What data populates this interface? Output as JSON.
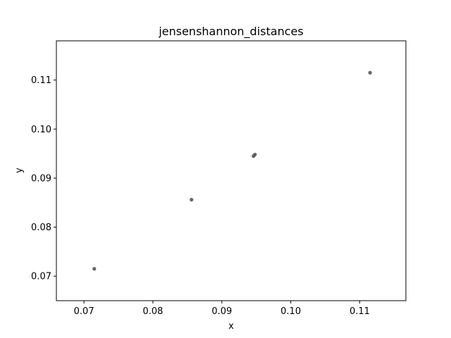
{
  "chart_data": {
    "type": "scatter",
    "title": "jensenshannon_distances",
    "xlabel": "x",
    "ylabel": "y",
    "xlim": [
      0.066,
      0.1167
    ],
    "ylim": [
      0.065,
      0.118
    ],
    "xticks": [
      0.07,
      0.08,
      0.09,
      0.1,
      0.11
    ],
    "xtick_labels": [
      "0.07",
      "0.08",
      "0.09",
      "0.10",
      "0.11"
    ],
    "yticks": [
      0.07,
      0.08,
      0.09,
      0.1,
      0.11
    ],
    "ytick_labels": [
      "0.07",
      "0.08",
      "0.09",
      "0.10",
      "0.11"
    ],
    "grid": false,
    "point_color": "#555555",
    "points": [
      {
        "x": 0.0715,
        "y": 0.0715
      },
      {
        "x": 0.0856,
        "y": 0.0856
      },
      {
        "x": 0.0946,
        "y": 0.0945
      },
      {
        "x": 0.0948,
        "y": 0.0948
      },
      {
        "x": 0.1115,
        "y": 0.1115
      }
    ]
  }
}
